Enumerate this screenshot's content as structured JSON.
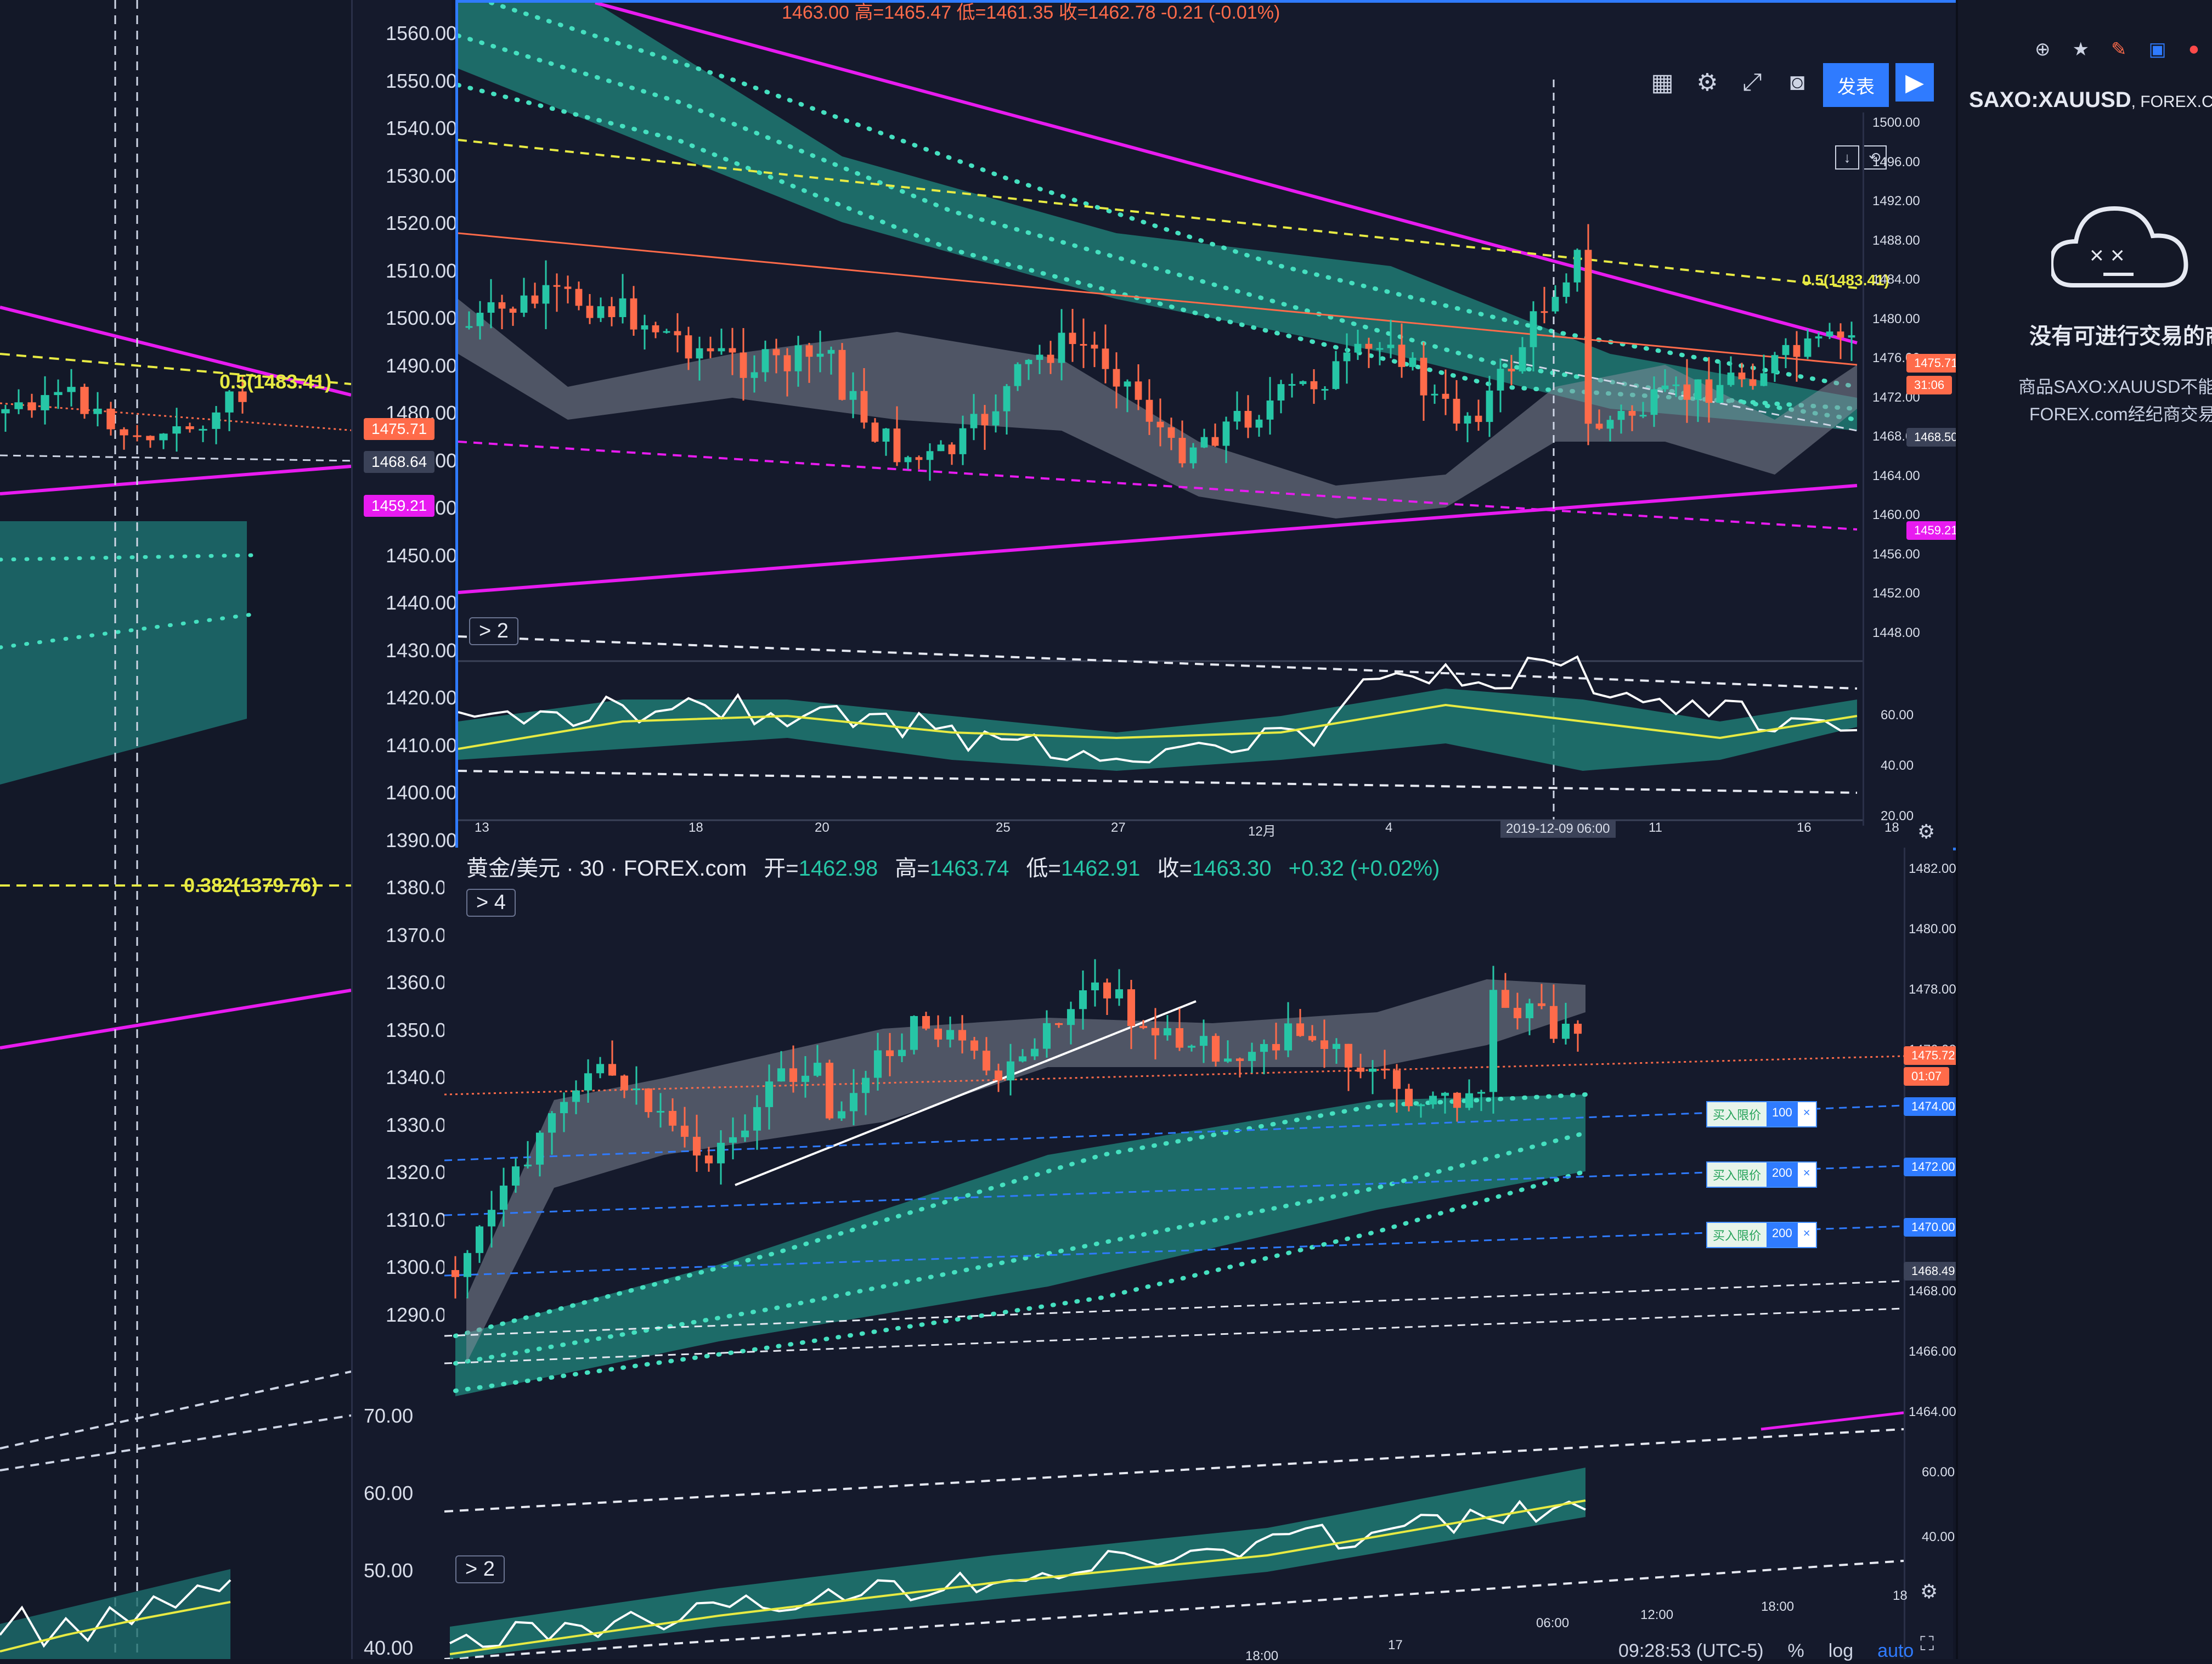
{
  "colors": {
    "bg": "#121626",
    "panel": "#151a2c",
    "up": "#26c6a6",
    "down": "#ff6b4a",
    "magenta": "#e81bf0",
    "cyan_fill": "#1f7f78",
    "dotted_teal": "#45e0c0",
    "yellow": "#e7ea43",
    "accent_blue": "#2f7bff"
  },
  "left_axis": {
    "upper_ticks": [
      "1560.00",
      "1550.00",
      "1540.00",
      "1530.00",
      "1520.00",
      "1510.00",
      "1500.00",
      "1490.00",
      "1480.00",
      "1470.00",
      "1460.00",
      "1450.00",
      "1440.00",
      "1430.00",
      "1420.00",
      "1410.00",
      "1400.00",
      "1390.00",
      "1380.00",
      "1370.00",
      "1360.00",
      "1350.00",
      "1340.00",
      "1330.00",
      "1320.00",
      "1310.00",
      "1300.00",
      "1290.00"
    ],
    "lower_ticks": [
      "70.00",
      "60.00",
      "50.00",
      "40.00"
    ],
    "labels": {
      "fib_05": "0.5(1483.41)",
      "fib_0382": "0.382(1379.76)",
      "price_red": "1475.71",
      "price_grey": "1468.64",
      "price_magenta": "1459.21"
    }
  },
  "top_chart": {
    "ohlc_header": "1463.00 高=1465.47 低=1461.35 收=1462.78 -0.21 (-0.01%)",
    "indicator_chip": "> 2",
    "fib_label": "0.5(1483.41)",
    "right_ticks": [
      "1500.00",
      "1496.00",
      "1492.00",
      "1488.00",
      "1484.00",
      "1480.00",
      "1476.00",
      "1472.00",
      "1468.00",
      "1464.00",
      "1460.00",
      "1456.00",
      "1452.00",
      "1448.00"
    ],
    "osc_ticks": [
      "60.00",
      "40.00",
      "20.00"
    ],
    "price_badges": {
      "red": "1475.71",
      "countdown": "31:06",
      "grey": "1468.50",
      "magenta": "1459.21"
    },
    "x_labels": [
      "13",
      "18",
      "20",
      "25",
      "27",
      "12月",
      "4",
      "2019-12-09  06:00",
      "11",
      "16",
      "18"
    ],
    "toolbar": {
      "layout_icon": "layout-icon",
      "settings_icon": "gear-icon",
      "fullscreen_icon": "fullscreen-icon",
      "camera_icon": "camera-icon",
      "publish": "发表",
      "play_icon": "play-icon"
    }
  },
  "bottom_chart": {
    "symbol": "黄金/美元 · 30 · FOREX.com",
    "open_label": "开=",
    "open": "1462.98",
    "high_label": "高=",
    "high": "1463.74",
    "low_label": "低=",
    "low": "1462.91",
    "close_label": "收=",
    "close": "1463.30",
    "change": "+0.32 (+0.02%)",
    "indicator_chip": "> 4",
    "osc_chip": "> 2",
    "right_ticks": [
      "1482.00",
      "1480.00",
      "1478.00",
      "1476.00",
      "1474.00",
      "1472.00",
      "1470.00",
      "1468.00",
      "1466.00",
      "1464.00"
    ],
    "osc_ticks": [
      "60.00",
      "40.00"
    ],
    "price_badges": {
      "red": "1475.72",
      "countdown": "01:07",
      "b1474": "1474.00",
      "b1472": "1472.00",
      "b1470": "1470.00",
      "grey": "1468.49"
    },
    "orders": [
      {
        "label": "买入限价",
        "qty": "100"
      },
      {
        "label": "买入限价",
        "qty": "200"
      },
      {
        "label": "买入限价",
        "qty": "200"
      }
    ],
    "x_labels": [
      "18:00",
      "17",
      "06:00",
      "12:00",
      "18:00",
      "18"
    ],
    "footer": {
      "time": "09:28:53 (UTC-5)",
      "percent": "%",
      "log": "log",
      "auto": "auto"
    }
  },
  "side_panel": {
    "symbol": "SAXO:XAUUSD",
    "broker": ", FOREX.COM",
    "empty_icon": "sad-cloud-icon",
    "title": "没有可进行交易的商",
    "line1": "商品SAXO:XAUUSD不能",
    "line2": "FOREX.com经纪商交易"
  }
}
